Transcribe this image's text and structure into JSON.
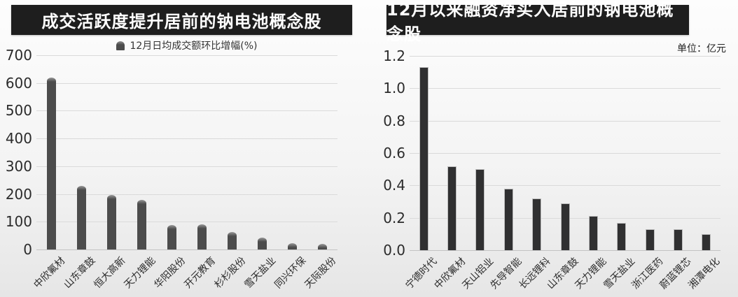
{
  "colors": {
    "banner_bg": "#1e1e1e",
    "banner_text": "#ffffff",
    "left_bar": "#4c4c4c",
    "right_bar": "#303030",
    "gridline": "#dadada",
    "background_top": "#fdfdfd",
    "background_bottom": "#e6e6e6"
  },
  "chart_data": [
    {
      "type": "bar",
      "title": "成交活跃度提升居前的钠电池概念股",
      "legend": [
        "12月日均成交额环比增幅(%)"
      ],
      "legend_position": "top-center",
      "categories": [
        "中欣氟材",
        "山东章鼓",
        "恒大高新",
        "天力锂能",
        "华阳股份",
        "开元教育",
        "杉杉股份",
        "雪天盐业",
        "同兴环保",
        "天际股份"
      ],
      "values": [
        620,
        228,
        197,
        180,
        88,
        91,
        62,
        43,
        23,
        21
      ],
      "xlabel": "",
      "ylabel": "",
      "ylim": [
        0,
        700
      ],
      "ytick_step": 100,
      "grid": true,
      "bar_style": "rounded-top",
      "xlabel_rotation": -45
    },
    {
      "type": "bar",
      "title": "12月以来融资净买入居前的钠电池概念股",
      "unit": "单位：亿元",
      "categories": [
        "宁德时代",
        "中欣氟材",
        "天山铝业",
        "先导智能",
        "长远锂科",
        "山东章鼓",
        "天力锂能",
        "雪天盐业",
        "浙江医药",
        "蔚蓝锂芯",
        "湘潭电化"
      ],
      "values": [
        1.13,
        0.52,
        0.5,
        0.38,
        0.32,
        0.29,
        0.21,
        0.17,
        0.13,
        0.13,
        0.1
      ],
      "xlabel": "",
      "ylabel": "",
      "ylim": [
        0,
        1.2
      ],
      "ytick_step": 0.2,
      "grid": true,
      "bar_style": "flat-top",
      "xlabel_rotation": -45
    }
  ]
}
